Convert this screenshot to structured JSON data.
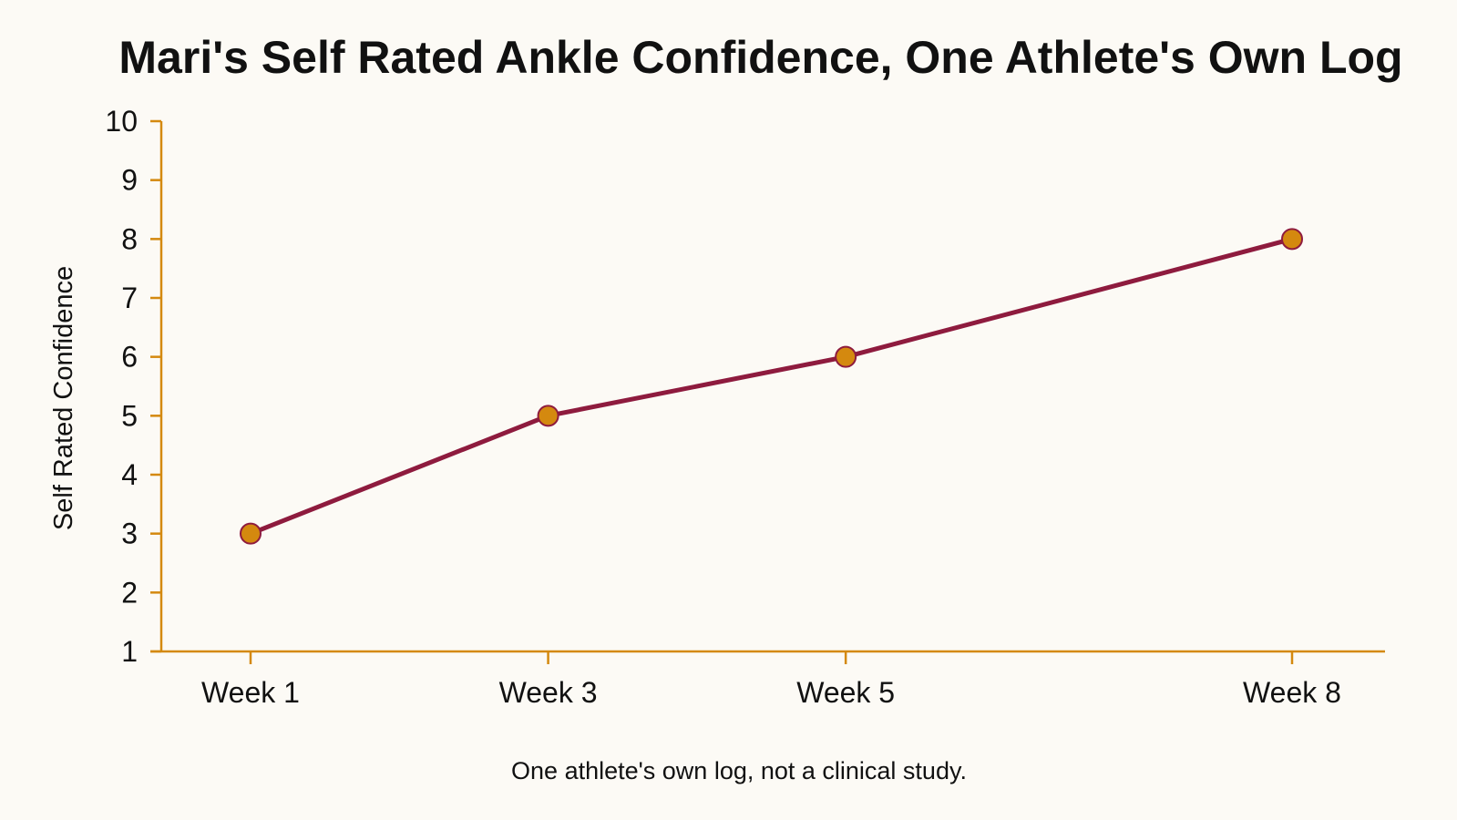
{
  "chart_data": {
    "type": "line",
    "title": "Mari's Self Rated Ankle Confidence, One Athlete's Own Log",
    "xlabel": "",
    "ylabel": "Self Rated Confidence",
    "categories": [
      "Week 1",
      "Week 3",
      "Week 5",
      "Week 8"
    ],
    "x": [
      1,
      3,
      5,
      8
    ],
    "series": [
      {
        "values": [
          3,
          5,
          6,
          8
        ]
      }
    ],
    "ylim": [
      1,
      10
    ],
    "yticks": [
      1,
      2,
      3,
      4,
      5,
      6,
      7,
      8,
      9,
      10
    ],
    "grid": false,
    "legend": "none",
    "footnote": "One athlete's own log, not a clinical study.",
    "colors": {
      "line": "#8e1b3e",
      "marker_fill": "#d4890f",
      "marker_stroke": "#8e1b3e",
      "axis": "#d4890f",
      "background": "#fcfaf5"
    }
  }
}
